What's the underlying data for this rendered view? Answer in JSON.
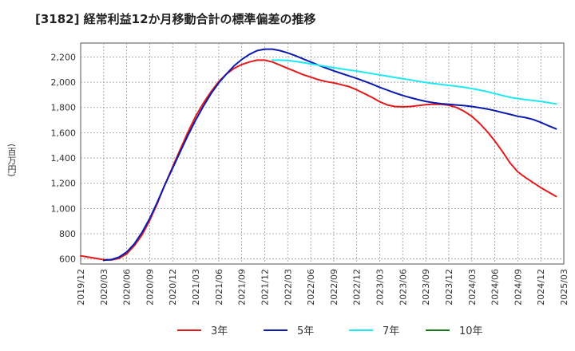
{
  "chart_data": {
    "type": "line",
    "title": "[3182]  経常利益12か月移動合計の標準偏差の推移",
    "ylabel": "(百万円)",
    "ylim": [
      560,
      2310
    ],
    "yticks": [
      600,
      800,
      1000,
      1200,
      1400,
      1600,
      1800,
      2000,
      2200
    ],
    "ytick_labels": [
      "600",
      "800",
      "1,000",
      "1,200",
      "1,400",
      "1,600",
      "1,800",
      "2,000",
      "2,200"
    ],
    "xticks": [
      "2019/12",
      "2020/03",
      "2020/06",
      "2020/09",
      "2020/12",
      "2021/03",
      "2021/06",
      "2021/09",
      "2021/12",
      "2022/03",
      "2022/06",
      "2022/09",
      "2022/12",
      "2023/03",
      "2023/06",
      "2023/09",
      "2023/12",
      "2024/03",
      "2024/06",
      "2024/09",
      "2024/12",
      "2025/03"
    ],
    "grid": true,
    "legend_position": "bottom",
    "series": [
      {
        "name": "3年",
        "color": "#e31a1c",
        "points": [
          [
            "2019/12",
            625
          ],
          [
            "2020/02",
            605
          ],
          [
            "2020/03",
            595
          ],
          [
            "2020/04",
            592
          ],
          [
            "2020/05",
            605
          ],
          [
            "2020/06",
            640
          ],
          [
            "2020/07",
            705
          ],
          [
            "2020/08",
            790
          ],
          [
            "2020/09",
            905
          ],
          [
            "2020/10",
            1040
          ],
          [
            "2020/11",
            1190
          ],
          [
            "2020/12",
            1330
          ],
          [
            "2021/01",
            1470
          ],
          [
            "2021/02",
            1605
          ],
          [
            "2021/03",
            1730
          ],
          [
            "2021/04",
            1835
          ],
          [
            "2021/05",
            1925
          ],
          [
            "2021/06",
            2005
          ],
          [
            "2021/07",
            2065
          ],
          [
            "2021/08",
            2110
          ],
          [
            "2021/09",
            2140
          ],
          [
            "2021/10",
            2160
          ],
          [
            "2021/11",
            2175
          ],
          [
            "2021/12",
            2175
          ],
          [
            "2022/01",
            2160
          ],
          [
            "2022/02",
            2135
          ],
          [
            "2022/03",
            2110
          ],
          [
            "2022/04",
            2085
          ],
          [
            "2022/05",
            2060
          ],
          [
            "2022/06",
            2040
          ],
          [
            "2022/07",
            2020
          ],
          [
            "2022/08",
            2005
          ],
          [
            "2022/09",
            1995
          ],
          [
            "2022/10",
            1980
          ],
          [
            "2022/11",
            1965
          ],
          [
            "2022/12",
            1940
          ],
          [
            "2023/01",
            1910
          ],
          [
            "2023/02",
            1880
          ],
          [
            "2023/03",
            1845
          ],
          [
            "2023/04",
            1820
          ],
          [
            "2023/05",
            1808
          ],
          [
            "2023/06",
            1805
          ],
          [
            "2023/07",
            1808
          ],
          [
            "2023/08",
            1815
          ],
          [
            "2023/09",
            1822
          ],
          [
            "2023/10",
            1826
          ],
          [
            "2023/11",
            1825
          ],
          [
            "2023/12",
            1818
          ],
          [
            "2024/01",
            1800
          ],
          [
            "2024/02",
            1770
          ],
          [
            "2024/03",
            1730
          ],
          [
            "2024/04",
            1675
          ],
          [
            "2024/05",
            1610
          ],
          [
            "2024/06",
            1535
          ],
          [
            "2024/07",
            1450
          ],
          [
            "2024/08",
            1360
          ],
          [
            "2024/09",
            1290
          ],
          [
            "2024/10",
            1245
          ],
          [
            "2024/11",
            1205
          ],
          [
            "2024/12",
            1165
          ],
          [
            "2025/01",
            1130
          ],
          [
            "2025/02",
            1095
          ]
        ]
      },
      {
        "name": "5年",
        "color": "#0b1bb0",
        "points": [
          [
            "2020/03",
            590
          ],
          [
            "2020/04",
            595
          ],
          [
            "2020/05",
            615
          ],
          [
            "2020/06",
            655
          ],
          [
            "2020/07",
            720
          ],
          [
            "2020/08",
            810
          ],
          [
            "2020/09",
            920
          ],
          [
            "2020/10",
            1050
          ],
          [
            "2020/11",
            1190
          ],
          [
            "2020/12",
            1320
          ],
          [
            "2021/01",
            1450
          ],
          [
            "2021/02",
            1580
          ],
          [
            "2021/03",
            1700
          ],
          [
            "2021/04",
            1810
          ],
          [
            "2021/05",
            1910
          ],
          [
            "2021/06",
            1995
          ],
          [
            "2021/07",
            2065
          ],
          [
            "2021/08",
            2130
          ],
          [
            "2021/09",
            2180
          ],
          [
            "2021/10",
            2220
          ],
          [
            "2021/11",
            2250
          ],
          [
            "2021/12",
            2262
          ],
          [
            "2022/01",
            2262
          ],
          [
            "2022/02",
            2250
          ],
          [
            "2022/03",
            2232
          ],
          [
            "2022/04",
            2210
          ],
          [
            "2022/05",
            2185
          ],
          [
            "2022/06",
            2160
          ],
          [
            "2022/07",
            2135
          ],
          [
            "2022/08",
            2112
          ],
          [
            "2022/09",
            2090
          ],
          [
            "2022/10",
            2070
          ],
          [
            "2022/11",
            2050
          ],
          [
            "2022/12",
            2030
          ],
          [
            "2023/01",
            2008
          ],
          [
            "2023/02",
            1985
          ],
          [
            "2023/03",
            1960
          ],
          [
            "2023/04",
            1937
          ],
          [
            "2023/05",
            1915
          ],
          [
            "2023/06",
            1895
          ],
          [
            "2023/07",
            1878
          ],
          [
            "2023/08",
            1862
          ],
          [
            "2023/09",
            1848
          ],
          [
            "2023/10",
            1838
          ],
          [
            "2023/11",
            1830
          ],
          [
            "2023/12",
            1825
          ],
          [
            "2024/01",
            1820
          ],
          [
            "2024/02",
            1815
          ],
          [
            "2024/03",
            1808
          ],
          [
            "2024/04",
            1798
          ],
          [
            "2024/05",
            1788
          ],
          [
            "2024/06",
            1775
          ],
          [
            "2024/07",
            1760
          ],
          [
            "2024/08",
            1745
          ],
          [
            "2024/09",
            1730
          ],
          [
            "2024/10",
            1720
          ],
          [
            "2024/11",
            1705
          ],
          [
            "2024/12",
            1682
          ],
          [
            "2025/01",
            1655
          ],
          [
            "2025/02",
            1630
          ]
        ]
      },
      {
        "name": "7年",
        "color": "#1de9f0",
        "points": [
          [
            "2022/01",
            2175
          ],
          [
            "2022/02",
            2175
          ],
          [
            "2022/03",
            2172
          ],
          [
            "2022/04",
            2165
          ],
          [
            "2022/05",
            2155
          ],
          [
            "2022/06",
            2145
          ],
          [
            "2022/07",
            2135
          ],
          [
            "2022/08",
            2125
          ],
          [
            "2022/09",
            2115
          ],
          [
            "2022/10",
            2105
          ],
          [
            "2022/11",
            2097
          ],
          [
            "2022/12",
            2088
          ],
          [
            "2023/01",
            2078
          ],
          [
            "2023/02",
            2068
          ],
          [
            "2023/03",
            2058
          ],
          [
            "2023/04",
            2048
          ],
          [
            "2023/05",
            2038
          ],
          [
            "2023/06",
            2028
          ],
          [
            "2023/07",
            2018
          ],
          [
            "2023/08",
            2008
          ],
          [
            "2023/09",
            1998
          ],
          [
            "2023/10",
            1990
          ],
          [
            "2023/11",
            1982
          ],
          [
            "2023/12",
            1975
          ],
          [
            "2024/01",
            1968
          ],
          [
            "2024/02",
            1960
          ],
          [
            "2024/03",
            1950
          ],
          [
            "2024/04",
            1938
          ],
          [
            "2024/05",
            1925
          ],
          [
            "2024/06",
            1910
          ],
          [
            "2024/07",
            1895
          ],
          [
            "2024/08",
            1880
          ],
          [
            "2024/09",
            1870
          ],
          [
            "2024/10",
            1862
          ],
          [
            "2024/11",
            1855
          ],
          [
            "2024/12",
            1848
          ],
          [
            "2025/01",
            1838
          ],
          [
            "2025/02",
            1828
          ]
        ]
      },
      {
        "name": "10年",
        "color": "#1a7a1a",
        "points": []
      }
    ]
  }
}
